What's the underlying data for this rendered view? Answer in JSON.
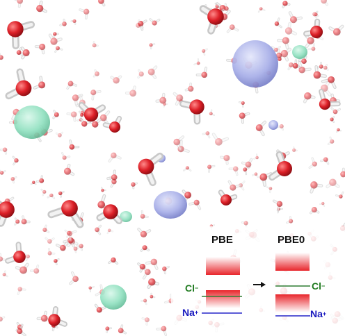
{
  "figure": {
    "left_panel": {
      "title": "PBE",
      "anion_label": "Cl",
      "anion_charge": "−",
      "cation_label": "Na",
      "cation_charge": "+"
    },
    "right_panel": {
      "title": "PBE0",
      "anion_label": "Cl",
      "anion_charge": "−",
      "cation_label": "Na",
      "cation_charge": "+"
    },
    "colors": {
      "band_red": "#e8262c",
      "anion_line": "#2e7d32",
      "anion_text": "#1e7a1e",
      "cation_line": "#2323c8",
      "cation_text": "#1a1abf",
      "chloride_blob": "#8fe0bf",
      "sodium_blob": "#a7aee8",
      "oxygen": "#d9282e",
      "hydrogen": "#e6e6e6"
    },
    "icons": {
      "transition_arrow": "right-arrow-icon"
    }
  }
}
